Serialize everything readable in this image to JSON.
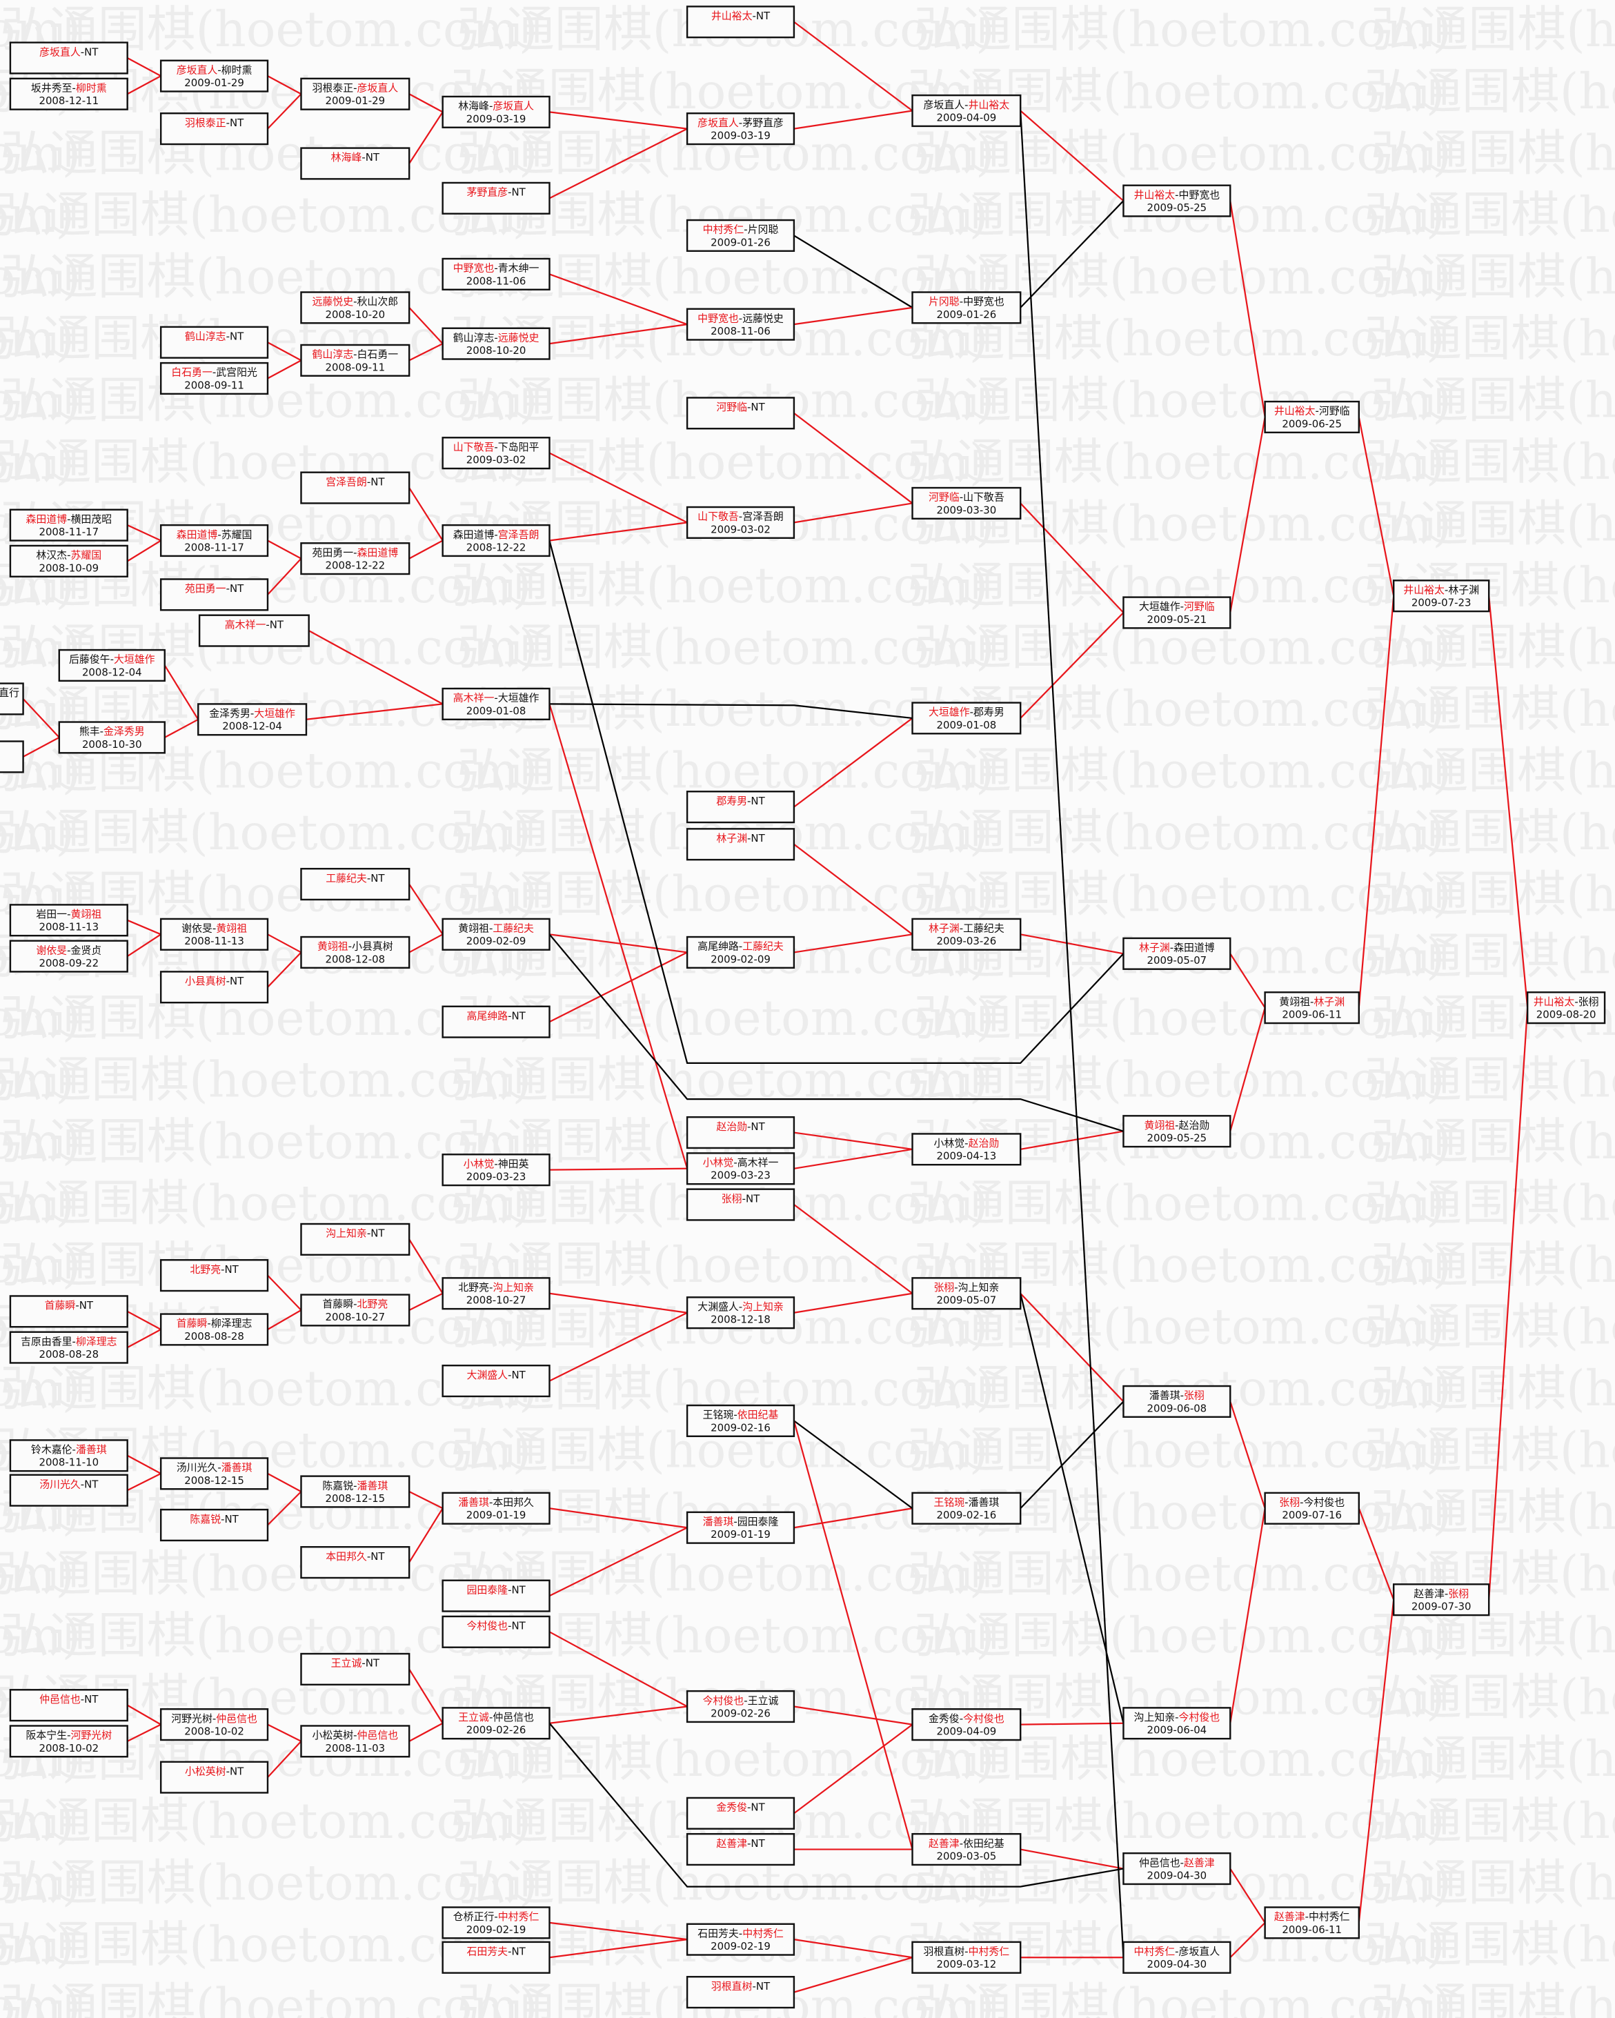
{
  "watermark": "弘通围棋(hoetom.com)",
  "separator": "-",
  "colors": {
    "winner": "#e8161c",
    "line_advance": "#e8161c",
    "line_drop": "#000000",
    "box_border": "#111111"
  },
  "matches": [
    {
      "p1": "彦坂直人",
      "p2": "NT",
      "w": 1,
      "date": ""
    },
    {
      "p1": "坂井秀至",
      "p2": "柳时熏",
      "w": 2,
      "date": "2008-12-11"
    },
    {
      "p1": "森田道博",
      "p2": "横田茂昭",
      "w": 1,
      "date": "2008-11-17"
    },
    {
      "p1": "林汉杰",
      "p2": "苏耀国",
      "w": 2,
      "date": "2008-10-09"
    },
    {
      "p1": "岩田一",
      "p2": "黄翊祖",
      "w": 2,
      "date": "2008-11-13"
    },
    {
      "p1": "谢依旻",
      "p2": "金贤贞",
      "w": 1,
      "date": "2008-09-22"
    },
    {
      "p1": "首藤瞬",
      "p2": "NT",
      "w": 1,
      "date": ""
    },
    {
      "p1": "吉原由香里",
      "p2": "柳泽理志",
      "w": 2,
      "date": "2008-08-28"
    },
    {
      "p1": "铃木嘉伦",
      "p2": "潘善琪",
      "w": 2,
      "date": "2008-11-10"
    },
    {
      "p1": "汤川光久",
      "p2": "NT",
      "w": 1,
      "date": ""
    },
    {
      "p1": "仲邑信也",
      "p2": "NT",
      "w": 1,
      "date": ""
    },
    {
      "p1": "阪本宁生",
      "p2": "河野光树",
      "w": 2,
      "date": "2008-10-02"
    },
    {
      "p1": "彦坂直人",
      "p2": "柳时熏",
      "w": 1,
      "date": "2009-01-29"
    },
    {
      "p1": "羽根泰正",
      "p2": "NT",
      "w": 1,
      "date": ""
    },
    {
      "p1": "鹤山淳志",
      "p2": "NT",
      "w": 1,
      "date": ""
    },
    {
      "p1": "白石勇一",
      "p2": "武宫阳光",
      "w": 1,
      "date": "2008-09-11"
    },
    {
      "p1": "森田道博",
      "p2": "苏耀国",
      "w": 1,
      "date": "2008-11-17"
    },
    {
      "p1": "苑田勇一",
      "p2": "NT",
      "w": 1,
      "date": ""
    },
    {
      "p1": "谢依旻",
      "p2": "黄翊祖",
      "w": 2,
      "date": "2008-11-13"
    },
    {
      "p1": "小县真树",
      "p2": "NT",
      "w": 1,
      "date": ""
    },
    {
      "p1": "北野亮",
      "p2": "NT",
      "w": 1,
      "date": ""
    },
    {
      "p1": "首藤瞬",
      "p2": "柳泽理志",
      "w": 1,
      "date": "2008-08-28"
    },
    {
      "p1": "汤川光久",
      "p2": "潘善琪",
      "w": 2,
      "date": "2008-12-15"
    },
    {
      "p1": "陈嘉锐",
      "p2": "NT",
      "w": 1,
      "date": ""
    },
    {
      "p1": "河野光树",
      "p2": "仲邑信也",
      "w": 2,
      "date": "2008-10-02"
    },
    {
      "p1": "小松英树",
      "p2": "NT",
      "w": 1,
      "date": ""
    },
    {
      "p1": "羽根泰正",
      "p2": "彦坂直人",
      "w": 2,
      "date": "2009-01-29"
    },
    {
      "p1": "林海峰",
      "p2": "NT",
      "w": 1,
      "date": ""
    },
    {
      "p1": "远藤悦史",
      "p2": "秋山次郎",
      "w": 1,
      "date": "2008-10-20"
    },
    {
      "p1": "鹤山淳志",
      "p2": "白石勇一",
      "w": 1,
      "date": "2008-09-11"
    },
    {
      "p1": "宫泽吾朗",
      "p2": "NT",
      "w": 1,
      "date": ""
    },
    {
      "p1": "苑田勇一",
      "p2": "森田道博",
      "w": 2,
      "date": "2008-12-22"
    },
    {
      "p1": "工藤纪夫",
      "p2": "NT",
      "w": 1,
      "date": ""
    },
    {
      "p1": "黄翊祖",
      "p2": "小县真树",
      "w": 1,
      "date": "2008-12-08"
    },
    {
      "p1": "沟上知亲",
      "p2": "NT",
      "w": 1,
      "date": ""
    },
    {
      "p1": "首藤瞬",
      "p2": "北野亮",
      "w": 2,
      "date": "2008-10-27"
    },
    {
      "p1": "陈嘉锐",
      "p2": "潘善琪",
      "w": 2,
      "date": "2008-12-15"
    },
    {
      "p1": "本田邦久",
      "p2": "NT",
      "w": 1,
      "date": ""
    },
    {
      "p1": "王立诚",
      "p2": "NT",
      "w": 1,
      "date": ""
    },
    {
      "p1": "小松英树",
      "p2": "仲邑信也",
      "w": 2,
      "date": "2008-11-03"
    },
    {
      "p1": "高木祥一",
      "p2": "NT",
      "w": 1,
      "date": ""
    },
    {
      "p1": "后藤俊午",
      "p2": "大垣雄作",
      "w": 2,
      "date": "2008-12-04"
    },
    {
      "p1": "金泽秀男",
      "p2": "大垣雄作",
      "w": 2,
      "date": "2008-12-04"
    },
    {
      "p1": "熊丰",
      "p2": "金泽秀男",
      "w": 2,
      "date": "2008-10-30"
    },
    {
      "p1": "直行",
      "p2": "",
      "w": 0,
      "date": ""
    },
    {
      "p1": "林海峰",
      "p2": "彦坂直人",
      "w": 2,
      "date": "2009-03-19"
    },
    {
      "p1": "茅野直彦",
      "p2": "NT",
      "w": 1,
      "date": ""
    },
    {
      "p1": "中野宽也",
      "p2": "青木绅一",
      "w": 1,
      "date": "2008-11-06"
    },
    {
      "p1": "鹤山淳志",
      "p2": "远藤悦史",
      "w": 2,
      "date": "2008-10-20"
    },
    {
      "p1": "山下敬吾",
      "p2": "下岛阳平",
      "w": 1,
      "date": "2009-03-02"
    },
    {
      "p1": "森田道博",
      "p2": "宫泽吾朗",
      "w": 2,
      "date": "2008-12-22"
    },
    {
      "p1": "高木祥一",
      "p2": "大垣雄作",
      "w": 1,
      "date": "2009-01-08"
    },
    {
      "p1": "黄翊祖",
      "p2": "工藤纪夫",
      "w": 2,
      "date": "2009-02-09"
    },
    {
      "p1": "高尾绅路",
      "p2": "NT",
      "w": 1,
      "date": ""
    },
    {
      "p1": "小林觉",
      "p2": "神田英",
      "w": 1,
      "date": "2009-03-23"
    },
    {
      "p1": "北野亮",
      "p2": "沟上知亲",
      "w": 2,
      "date": "2008-10-27"
    },
    {
      "p1": "大渊盛人",
      "p2": "NT",
      "w": 1,
      "date": ""
    },
    {
      "p1": "潘善琪",
      "p2": "本田邦久",
      "w": 1,
      "date": "2009-01-19"
    },
    {
      "p1": "园田泰隆",
      "p2": "NT",
      "w": 1,
      "date": ""
    },
    {
      "p1": "今村俊也",
      "p2": "NT",
      "w": 1,
      "date": ""
    },
    {
      "p1": "王立诚",
      "p2": "仲邑信也",
      "w": 1,
      "date": "2009-02-26"
    },
    {
      "p1": "仓桥正行",
      "p2": "中村秀仁",
      "w": 2,
      "date": "2009-02-19"
    },
    {
      "p1": "石田芳夫",
      "p2": "NT",
      "w": 1,
      "date": ""
    },
    {
      "p1": "井山裕太",
      "p2": "NT",
      "w": 1,
      "date": ""
    },
    {
      "p1": "彦坂直人",
      "p2": "茅野直彦",
      "w": 1,
      "date": "2009-03-19"
    },
    {
      "p1": "中村秀仁",
      "p2": "片冈聪",
      "w": 1,
      "date": "2009-01-26"
    },
    {
      "p1": "中野宽也",
      "p2": "远藤悦史",
      "w": 1,
      "date": "2008-11-06"
    },
    {
      "p1": "河野临",
      "p2": "NT",
      "w": 1,
      "date": ""
    },
    {
      "p1": "山下敬吾",
      "p2": "宫泽吾朗",
      "w": 1,
      "date": "2009-03-02"
    },
    {
      "p1": "郡寿男",
      "p2": "NT",
      "w": 1,
      "date": ""
    },
    {
      "p1": "林子渊",
      "p2": "NT",
      "w": 1,
      "date": ""
    },
    {
      "p1": "高尾绅路",
      "p2": "工藤纪夫",
      "w": 2,
      "date": "2009-02-09"
    },
    {
      "p1": "赵治勋",
      "p2": "NT",
      "w": 1,
      "date": ""
    },
    {
      "p1": "小林觉",
      "p2": "高木祥一",
      "w": 1,
      "date": "2009-03-23"
    },
    {
      "p1": "张栩",
      "p2": "NT",
      "w": 1,
      "date": ""
    },
    {
      "p1": "大渊盛人",
      "p2": "沟上知亲",
      "w": 2,
      "date": "2008-12-18"
    },
    {
      "p1": "王铭琬",
      "p2": "依田纪基",
      "w": 2,
      "date": "2009-02-16"
    },
    {
      "p1": "潘善琪",
      "p2": "园田泰隆",
      "w": 1,
      "date": "2009-01-19"
    },
    {
      "p1": "今村俊也",
      "p2": "王立诚",
      "w": 1,
      "date": "2009-02-26"
    },
    {
      "p1": "金秀俊",
      "p2": "NT",
      "w": 1,
      "date": ""
    },
    {
      "p1": "赵善津",
      "p2": "NT",
      "w": 1,
      "date": ""
    },
    {
      "p1": "石田芳夫",
      "p2": "中村秀仁",
      "w": 2,
      "date": "2009-02-19"
    },
    {
      "p1": "羽根直树",
      "p2": "NT",
      "w": 1,
      "date": ""
    },
    {
      "p1": "彦坂直人",
      "p2": "井山裕太",
      "w": 2,
      "date": "2009-04-09"
    },
    {
      "p1": "片冈聪",
      "p2": "中野宽也",
      "w": 1,
      "date": "2009-01-26"
    },
    {
      "p1": "河野临",
      "p2": "山下敬吾",
      "w": 1,
      "date": "2009-03-30"
    },
    {
      "p1": "大垣雄作",
      "p2": "郡寿男",
      "w": 1,
      "date": "2009-01-08"
    },
    {
      "p1": "林子渊",
      "p2": "工藤纪夫",
      "w": 1,
      "date": "2009-03-26"
    },
    {
      "p1": "小林觉",
      "p2": "赵治勋",
      "w": 2,
      "date": "2009-04-13"
    },
    {
      "p1": "张栩",
      "p2": "沟上知亲",
      "w": 1,
      "date": "2009-05-07"
    },
    {
      "p1": "王铭琬",
      "p2": "潘善琪",
      "w": 1,
      "date": "2009-02-16"
    },
    {
      "p1": "金秀俊",
      "p2": "今村俊也",
      "w": 2,
      "date": "2009-04-09"
    },
    {
      "p1": "赵善津",
      "p2": "依田纪基",
      "w": 1,
      "date": "2009-03-05"
    },
    {
      "p1": "羽根直树",
      "p2": "中村秀仁",
      "w": 2,
      "date": "2009-03-12"
    },
    {
      "p1": "井山裕太",
      "p2": "中野宽也",
      "w": 1,
      "date": "2009-05-25"
    },
    {
      "p1": "大垣雄作",
      "p2": "河野临",
      "w": 2,
      "date": "2009-05-21"
    },
    {
      "p1": "林子渊",
      "p2": "森田道博",
      "w": 1,
      "date": "2009-05-07"
    },
    {
      "p1": "黄翊祖",
      "p2": "赵治勋",
      "w": 1,
      "date": "2009-05-25"
    },
    {
      "p1": "潘善琪",
      "p2": "张栩",
      "w": 2,
      "date": "2009-06-08"
    },
    {
      "p1": "沟上知亲",
      "p2": "今村俊也",
      "w": 2,
      "date": "2009-06-04"
    },
    {
      "p1": "仲邑信也",
      "p2": "赵善津",
      "w": 2,
      "date": "2009-04-30"
    },
    {
      "p1": "中村秀仁",
      "p2": "彦坂直人",
      "w": 1,
      "date": "2009-04-30"
    },
    {
      "p1": "井山裕太",
      "p2": "河野临",
      "w": 1,
      "date": "2009-06-25"
    },
    {
      "p1": "黄翊祖",
      "p2": "林子渊",
      "w": 2,
      "date": "2009-06-11"
    },
    {
      "p1": "张栩",
      "p2": "今村俊也",
      "w": 1,
      "date": "2009-07-16"
    },
    {
      "p1": "赵善津",
      "p2": "中村秀仁",
      "w": 1,
      "date": "2009-06-11"
    },
    {
      "p1": "井山裕太",
      "p2": "林子渊",
      "w": 1,
      "date": "2009-07-23"
    },
    {
      "p1": "赵善津",
      "p2": "张栩",
      "w": 2,
      "date": "2009-07-30"
    },
    {
      "p1": "井山裕太",
      "p2": "张栩",
      "w": 1,
      "date": "2009-08-20"
    }
  ]
}
